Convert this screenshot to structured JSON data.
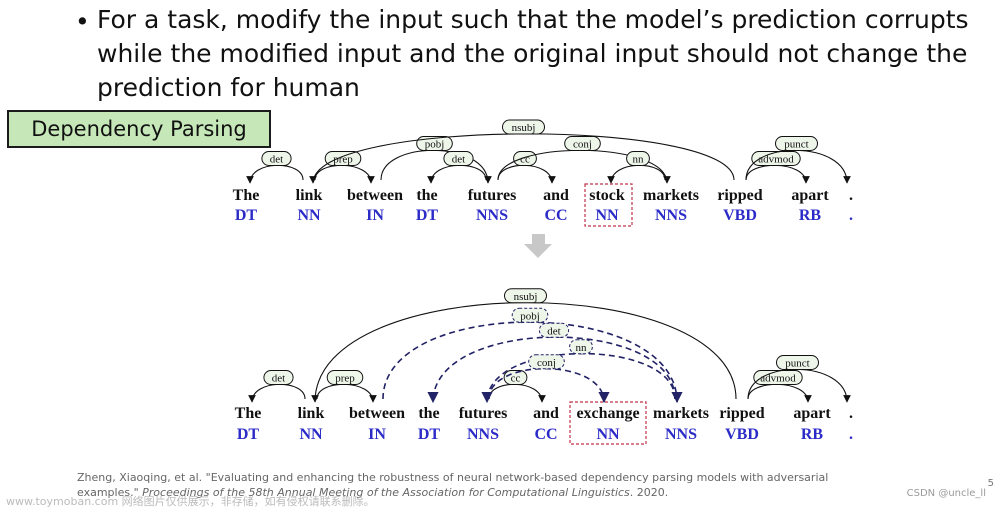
{
  "slide": {
    "bullet_lines": [
      "For a task, modify the input such that the model’s prediction corrupts",
      "while the modified input and the original input should not change the",
      "prediction for human"
    ],
    "section_label": "Dependency Parsing",
    "citation_part1": "Zheng, Xiaoqing, et al. \"Evaluating and enhancing the robustness of neural network-based dependency parsing models with adversarial examples.\"",
    "citation_journal": "Proceedings of the 58th Annual Meeting of the Association for Computational Linguistics",
    "citation_year": ". 2020.",
    "page_number": "5",
    "watermark_left": "www.toymoban.com 网络图片仅供展示，非存储，如有侵权请联系删除。",
    "watermark_right": "CSDN @uncle_ll"
  },
  "colors": {
    "tag_blue": "#2b2bc8",
    "label_fill": "#eef6ea",
    "highlight_border": "#c0334a",
    "box_green": "#c6e7b8"
  },
  "diagram": {
    "original": {
      "words": [
        {
          "word": "The",
          "tag": "DT"
        },
        {
          "word": "link",
          "tag": "NN"
        },
        {
          "word": "between",
          "tag": "IN"
        },
        {
          "word": "the",
          "tag": "DT"
        },
        {
          "word": "futures",
          "tag": "NNS"
        },
        {
          "word": "and",
          "tag": "CC"
        },
        {
          "word": "stock",
          "tag": "NN"
        },
        {
          "word": "markets",
          "tag": "NNS"
        },
        {
          "word": "ripped",
          "tag": "VBD"
        },
        {
          "word": "apart",
          "tag": "RB"
        },
        {
          "word": ".",
          "tag": "."
        }
      ],
      "highlight_index": 6,
      "arcs": [
        {
          "label": "det",
          "from": 1,
          "to": 0
        },
        {
          "label": "prep",
          "from": 1,
          "to": 2
        },
        {
          "label": "pobj",
          "from": 2,
          "to": 4
        },
        {
          "label": "det",
          "from": 4,
          "to": 3
        },
        {
          "label": "cc",
          "from": 4,
          "to": 5
        },
        {
          "label": "conj",
          "from": 4,
          "to": 7
        },
        {
          "label": "nn",
          "from": 7,
          "to": 6
        },
        {
          "label": "nsubj",
          "from": 8,
          "to": 1
        },
        {
          "label": "advmod",
          "from": 8,
          "to": 9
        },
        {
          "label": "punct",
          "from": 8,
          "to": 10
        }
      ]
    },
    "adversarial": {
      "words": [
        {
          "word": "The",
          "tag": "DT"
        },
        {
          "word": "link",
          "tag": "NN"
        },
        {
          "word": "between",
          "tag": "IN"
        },
        {
          "word": "the",
          "tag": "DT"
        },
        {
          "word": "futures",
          "tag": "NNS"
        },
        {
          "word": "and",
          "tag": "CC"
        },
        {
          "word": "exchange",
          "tag": "NN"
        },
        {
          "word": "markets",
          "tag": "NNS"
        },
        {
          "word": "ripped",
          "tag": "VBD"
        },
        {
          "word": "apart",
          "tag": "RB"
        },
        {
          "word": ".",
          "tag": "."
        }
      ],
      "highlight_index": 6,
      "arcs": [
        {
          "label": "det",
          "from": 1,
          "to": 0
        },
        {
          "label": "prep",
          "from": 1,
          "to": 2
        },
        {
          "label": "nsubj",
          "from": 8,
          "to": 1
        },
        {
          "label": "advmod",
          "from": 8,
          "to": 9
        },
        {
          "label": "punct",
          "from": 8,
          "to": 10
        },
        {
          "label": "cc",
          "from": 4,
          "to": 5
        },
        {
          "label": "pobj",
          "from": 2,
          "to": 7,
          "dashed": true
        },
        {
          "label": "det",
          "from": 7,
          "to": 3,
          "dashed": true
        },
        {
          "label": "nn",
          "from": 7,
          "to": 4,
          "dashed": true
        },
        {
          "label": "conj",
          "from": 4,
          "to": 6,
          "dashed": true
        }
      ]
    }
  }
}
